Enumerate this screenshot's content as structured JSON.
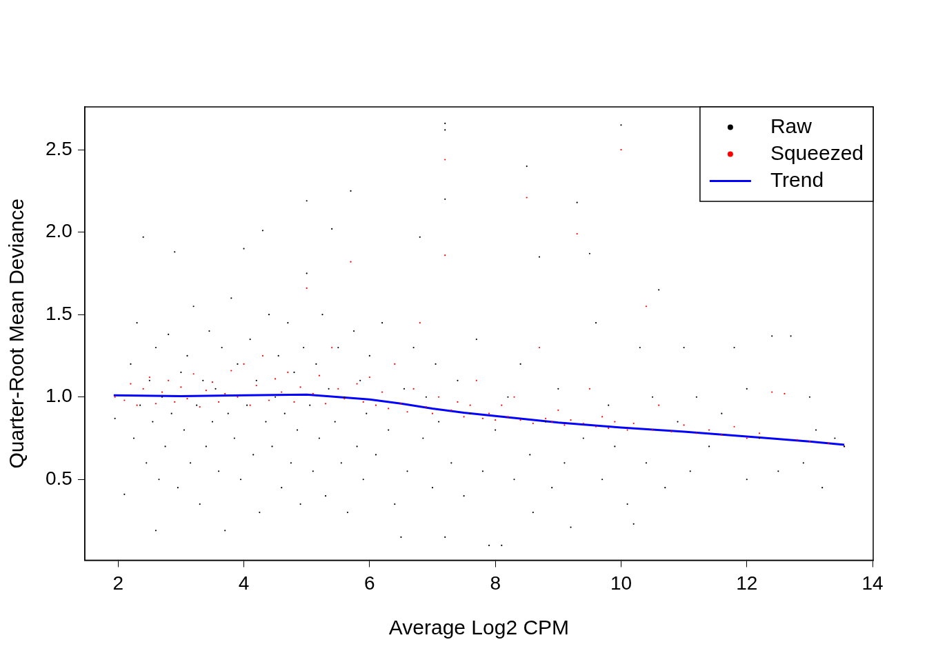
{
  "chart_data": {
    "type": "scatter",
    "xlabel": "Average Log2 CPM",
    "ylabel": "Quarter-Root Mean Deviance",
    "xlim": [
      1.47,
      14.01
    ],
    "xticks": [
      2,
      4,
      6,
      8,
      10,
      12,
      14
    ],
    "ylim": [
      0.01,
      2.76
    ],
    "yticks": [
      0.5,
      {
        "value": 1,
        "label": "1.0"
      },
      1.5,
      {
        "value": 2,
        "label": "2.0"
      },
      2.5
    ],
    "grid": false,
    "legend": "topright",
    "series": [
      {
        "name": "Raw",
        "color": "#000000",
        "type": "scatter",
        "marker": "point",
        "x": [
          1.95,
          2.1,
          2.2,
          2.25,
          2.3,
          2.35,
          2.4,
          2.45,
          2.5,
          2.55,
          2.6,
          2.6,
          2.65,
          2.7,
          2.75,
          2.8,
          2.85,
          2.9,
          2.95,
          3.0,
          3.05,
          3.1,
          3.15,
          3.2,
          3.25,
          3.3,
          3.35,
          3.4,
          3.45,
          3.5,
          3.55,
          3.6,
          3.65,
          3.7,
          3.75,
          3.8,
          3.85,
          3.9,
          3.95,
          4.0,
          4.05,
          4.1,
          4.15,
          4.2,
          4.25,
          4.3,
          4.35,
          4.4,
          4.45,
          4.5,
          4.55,
          4.6,
          4.65,
          4.7,
          4.75,
          4.8,
          4.85,
          4.9,
          4.95,
          5.0,
          5.0,
          5.05,
          5.1,
          5.15,
          5.2,
          5.25,
          5.3,
          5.35,
          5.4,
          5.45,
          5.5,
          5.55,
          5.6,
          5.65,
          5.7,
          5.75,
          5.8,
          5.85,
          5.9,
          5.95,
          6.0,
          6.1,
          6.2,
          6.3,
          6.4,
          6.5,
          6.55,
          6.6,
          6.7,
          6.8,
          6.85,
          6.9,
          7.0,
          7.05,
          7.1,
          7.2,
          7.2,
          7.2,
          7.2,
          7.3,
          7.4,
          7.5,
          7.6,
          7.7,
          7.8,
          7.9,
          8.0,
          8.1,
          8.2,
          8.3,
          8.4,
          8.5,
          8.55,
          8.6,
          8.7,
          8.8,
          8.9,
          9.0,
          9.1,
          9.2,
          9.3,
          9.4,
          9.5,
          9.6,
          9.7,
          9.8,
          9.9,
          10.0,
          10.1,
          10.2,
          10.3,
          10.4,
          10.5,
          10.6,
          10.7,
          10.9,
          11.0,
          11.1,
          11.2,
          11.4,
          11.6,
          11.8,
          12.0,
          12.0,
          12.2,
          12.4,
          12.5,
          12.7,
          12.9,
          13.0,
          13.1,
          13.2,
          13.4,
          13.55
        ],
        "values": [
          0.87,
          0.41,
          1.2,
          0.75,
          1.45,
          0.95,
          1.97,
          0.6,
          1.1,
          0.85,
          0.19,
          1.3,
          0.5,
          1.0,
          0.7,
          1.38,
          0.9,
          1.88,
          0.45,
          1.15,
          0.8,
          1.25,
          0.6,
          1.55,
          0.95,
          0.35,
          1.1,
          0.7,
          1.4,
          0.85,
          1.05,
          0.55,
          1.3,
          0.19,
          0.9,
          1.6,
          0.75,
          1.2,
          0.5,
          1.9,
          0.95,
          1.35,
          0.65,
          1.1,
          0.3,
          2.01,
          0.85,
          1.5,
          0.7,
          1.0,
          1.25,
          0.45,
          0.9,
          1.45,
          0.6,
          1.15,
          0.8,
          0.35,
          1.3,
          2.19,
          1.75,
          0.95,
          0.55,
          1.2,
          0.75,
          1.5,
          0.4,
          1.05,
          2.02,
          0.85,
          1.3,
          0.6,
          1.0,
          0.3,
          2.25,
          1.4,
          0.7,
          1.1,
          0.5,
          0.9,
          1.25,
          0.65,
          1.45,
          0.8,
          0.35,
          0.15,
          1.05,
          0.55,
          1.3,
          1.97,
          0.75,
          1.0,
          0.45,
          1.2,
          0.85,
          2.66,
          2.62,
          2.2,
          0.15,
          0.6,
          1.1,
          0.4,
          0.9,
          1.35,
          0.55,
          0.1,
          0.8,
          0.1,
          1.0,
          0.5,
          1.2,
          2.4,
          0.65,
          0.3,
          1.85,
          0.85,
          0.45,
          1.05,
          0.6,
          0.21,
          2.18,
          0.75,
          1.87,
          1.45,
          0.5,
          0.95,
          0.7,
          2.65,
          0.35,
          0.23,
          1.3,
          0.6,
          1.0,
          1.65,
          0.45,
          0.85,
          1.3,
          0.55,
          1.0,
          0.7,
          0.9,
          1.3,
          0.5,
          1.05,
          0.75,
          1.37,
          0.55,
          1.37,
          0.6,
          1.0,
          0.8,
          0.45,
          0.75,
          0.7
        ]
      },
      {
        "name": "Squeezed",
        "color": "#ff0000",
        "type": "scatter",
        "marker": "point",
        "x": [
          1.95,
          2.1,
          2.2,
          2.3,
          2.4,
          2.5,
          2.6,
          2.7,
          2.8,
          2.9,
          3.0,
          3.1,
          3.2,
          3.3,
          3.4,
          3.5,
          3.6,
          3.7,
          3.8,
          3.9,
          4.0,
          4.1,
          4.2,
          4.3,
          4.4,
          4.5,
          4.6,
          4.7,
          4.8,
          4.9,
          5.0,
          5.1,
          5.2,
          5.3,
          5.4,
          5.5,
          5.6,
          5.7,
          5.8,
          5.9,
          6.0,
          6.1,
          6.2,
          6.3,
          6.4,
          6.5,
          6.6,
          6.7,
          6.8,
          6.9,
          7.0,
          7.1,
          7.2,
          7.2,
          7.3,
          7.4,
          7.5,
          7.6,
          7.7,
          7.8,
          7.9,
          8.0,
          8.1,
          8.2,
          8.3,
          8.4,
          8.5,
          8.6,
          8.7,
          8.8,
          8.9,
          9.0,
          9.1,
          9.2,
          9.3,
          9.4,
          9.5,
          9.6,
          9.7,
          9.8,
          9.9,
          10.0,
          10.1,
          10.2,
          10.4,
          10.5,
          10.6,
          10.8,
          11.0,
          11.2,
          11.4,
          11.6,
          11.8,
          12.0,
          12.2,
          12.4,
          12.6,
          12.8,
          13.0,
          13.3,
          13.55
        ],
        "values": [
          1.0,
          0.98,
          1.08,
          0.95,
          1.05,
          1.12,
          0.96,
          1.03,
          1.1,
          0.97,
          1.06,
          0.99,
          1.14,
          0.94,
          1.04,
          1.09,
          0.97,
          1.02,
          1.16,
          1.0,
          1.2,
          0.95,
          1.07,
          1.25,
          0.98,
          1.11,
          1.03,
          1.15,
          0.97,
          1.06,
          1.66,
          1.02,
          1.13,
          0.96,
          1.3,
          1.05,
          0.99,
          1.82,
          1.08,
          0.97,
          1.12,
          0.95,
          1.03,
          0.93,
          1.2,
          0.96,
          0.91,
          1.05,
          1.45,
          0.94,
          0.9,
          1.0,
          2.44,
          1.86,
          0.92,
          0.97,
          0.88,
          0.95,
          1.1,
          0.87,
          0.9,
          0.86,
          0.95,
          0.88,
          1.0,
          0.86,
          2.21,
          0.84,
          1.3,
          0.87,
          0.85,
          0.92,
          0.83,
          0.86,
          1.99,
          0.84,
          1.05,
          0.82,
          0.88,
          0.81,
          0.85,
          2.5,
          0.8,
          0.84,
          1.55,
          0.8,
          0.95,
          0.79,
          0.83,
          0.78,
          0.8,
          0.77,
          0.82,
          0.75,
          0.78,
          1.03,
          1.02,
          0.74,
          0.73,
          0.72,
          0.7
        ]
      },
      {
        "name": "Trend",
        "color": "#0000ff",
        "type": "line",
        "line_style": "solid",
        "x": [
          1.93,
          3,
          4,
          5,
          5.5,
          6,
          6.5,
          7,
          7.5,
          8,
          8.5,
          9,
          10,
          11,
          12,
          13,
          13.55
        ],
        "values": [
          1.01,
          1.005,
          1.01,
          1.015,
          1.0,
          0.985,
          0.96,
          0.93,
          0.905,
          0.885,
          0.865,
          0.845,
          0.815,
          0.79,
          0.76,
          0.73,
          0.71
        ]
      }
    ]
  }
}
